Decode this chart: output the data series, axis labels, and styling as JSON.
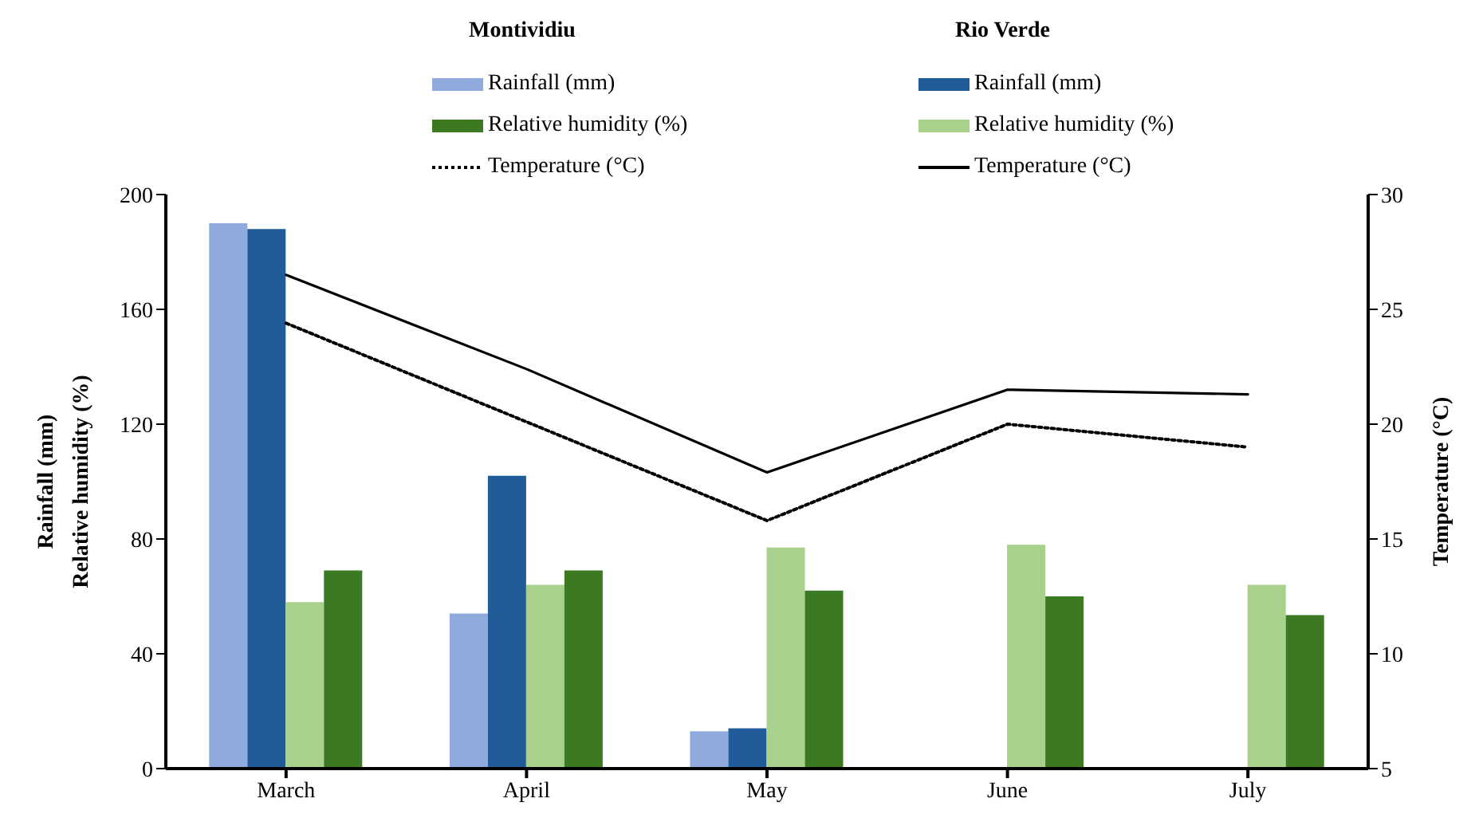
{
  "chart_data": {
    "type": "bar",
    "categories": [
      "March",
      "April",
      "May",
      "June",
      "July"
    ],
    "ylabel": "Rainfall (mm)\nRelative humidity (%)",
    "y2label": "Temperature (°C)",
    "annotations": [
      "Montividiu",
      "Rio Verde"
    ],
    "series": [
      {
        "name": "Rainfall (mm)",
        "color": "#8faadc",
        "values": [
          190,
          54,
          13,
          null,
          null
        ]
      },
      {
        "name": "Rainfall (mm)",
        "color": "#1f5c99",
        "values": [
          188,
          102,
          14,
          null,
          null
        ]
      },
      {
        "name": "Relative humidity (%)",
        "color": "#a9d18e",
        "values": [
          58,
          64,
          77,
          78,
          64
        ]
      },
      {
        "name": "Relative humidity (%)",
        "color": "#3b7a23",
        "values": [
          69,
          69,
          62,
          60,
          53.5
        ]
      },
      {
        "name": "Temperature (°C)",
        "type": "line",
        "axis": "y2",
        "color": "#000000",
        "line_style": "dotted",
        "values": [
          24.4,
          20.1,
          15.8,
          20.0,
          19.0
        ]
      },
      {
        "name": "Temperature (°C)",
        "type": "line",
        "axis": "y2",
        "color": "#000000",
        "line_style": "solid",
        "values": [
          26.5,
          22.4,
          17.9,
          21.5,
          21.3
        ]
      }
    ],
    "ylim": [
      0,
      200
    ],
    "yticks": [
      0,
      40,
      80,
      120,
      160,
      200
    ],
    "y2lim": [
      5,
      30
    ],
    "y2ticks": [
      5,
      10,
      15,
      20,
      25,
      30
    ],
    "grid": false,
    "legend": "top",
    "marker": "none"
  }
}
